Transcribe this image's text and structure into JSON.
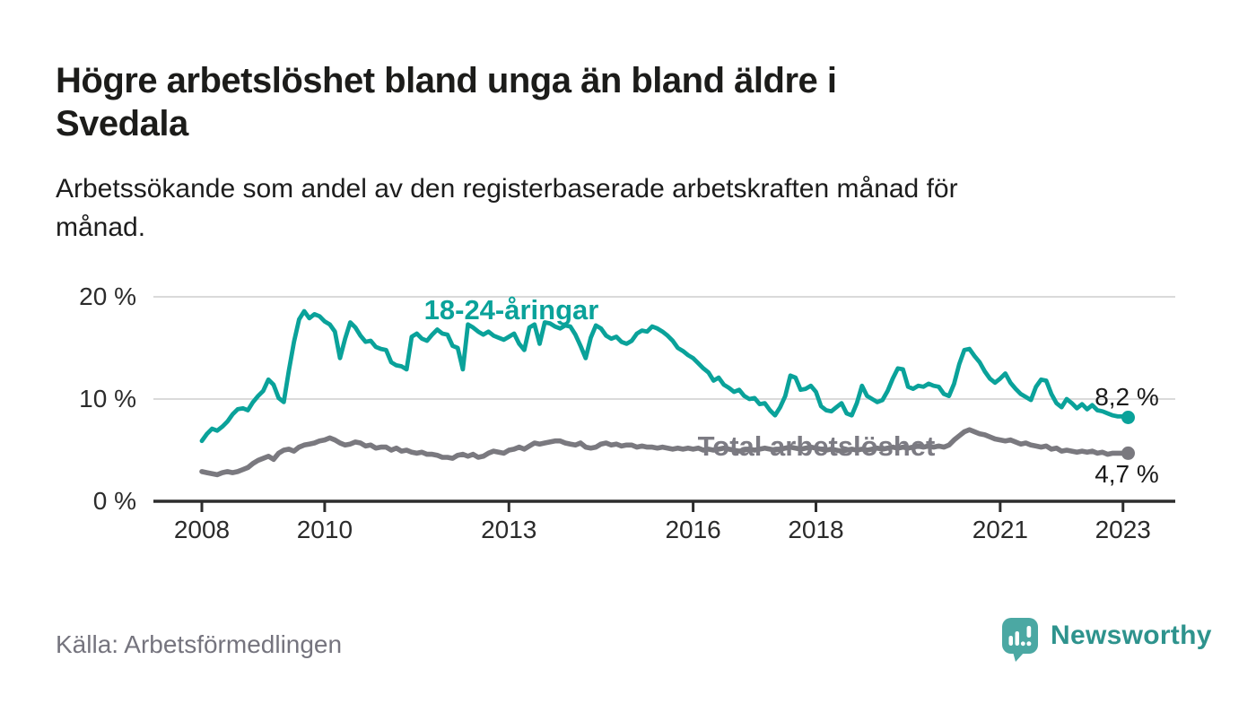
{
  "header": {
    "title_line1": "Högre arbetslöshet bland unga än bland äldre i",
    "title_line2": "Svedala",
    "subtitle_line1": "Arbetssökande som andel av den registerbaserade arbetskraften månad för",
    "subtitle_line2": "månad."
  },
  "footer": {
    "source_label": "Källa: Arbetsförmedlingen",
    "brand_name": "Newsworthy"
  },
  "colors": {
    "young_line": "#0aa29a",
    "total_line": "#7a797f",
    "gridline": "#dadada",
    "axis": "#2d2d2d",
    "brand_icon": "#4ba8a3",
    "brand_text": "#2e938d"
  },
  "chart_data": {
    "type": "line",
    "unit": "%",
    "frequency": "monthly",
    "start": "2008-01",
    "end": "2023-02",
    "ylim": [
      0,
      22
    ],
    "grid": "horizontal",
    "legend_position": "inline-labels",
    "x_ticks": [
      {
        "label": "2008",
        "year": 2008
      },
      {
        "label": "2010",
        "year": 2010
      },
      {
        "label": "2013",
        "year": 2013
      },
      {
        "label": "2016",
        "year": 2016
      },
      {
        "label": "2018",
        "year": 2018
      },
      {
        "label": "2021",
        "year": 2021
      },
      {
        "label": "2023",
        "year": 2023
      }
    ],
    "y_ticks": [
      {
        "label": "0 %",
        "value": 0
      },
      {
        "label": "10 %",
        "value": 10
      },
      {
        "label": "20 %",
        "value": 20
      }
    ],
    "series": [
      {
        "name": "18-24-åringar",
        "color": "#0aa29a",
        "end_label": "8,2 %",
        "last_value": 8.2,
        "values": [
          5.9,
          6.6,
          7.1,
          6.9,
          7.3,
          7.8,
          8.5,
          9.0,
          9.1,
          8.9,
          9.7,
          10.3,
          10.8,
          11.9,
          11.4,
          10.1,
          9.7,
          12.8,
          15.6,
          17.8,
          18.6,
          17.9,
          18.3,
          18.1,
          17.6,
          17.3,
          16.6,
          14.0,
          15.9,
          17.5,
          17.0,
          16.2,
          15.6,
          15.7,
          15.1,
          14.9,
          14.8,
          13.6,
          13.3,
          13.2,
          12.9,
          16.1,
          16.4,
          15.9,
          15.7,
          16.3,
          16.8,
          16.4,
          16.3,
          15.2,
          15.0,
          12.9,
          17.3,
          17.0,
          16.6,
          16.3,
          16.6,
          16.2,
          16.0,
          15.8,
          16.1,
          16.4,
          15.4,
          14.8,
          17.0,
          17.3,
          15.4,
          17.5,
          17.4,
          17.1,
          16.9,
          17.2,
          17.1,
          16.3,
          15.2,
          14.0,
          16.0,
          17.2,
          16.9,
          16.2,
          15.9,
          16.1,
          15.6,
          15.4,
          15.7,
          16.4,
          16.7,
          16.6,
          17.1,
          16.9,
          16.6,
          16.2,
          15.7,
          15.0,
          14.7,
          14.3,
          14.0,
          13.5,
          13.0,
          12.6,
          11.8,
          12.1,
          11.4,
          11.1,
          10.7,
          10.9,
          10.3,
          10.0,
          10.1,
          9.5,
          9.6,
          8.9,
          8.4,
          9.2,
          10.3,
          12.3,
          12.1,
          10.9,
          11.0,
          11.3,
          10.7,
          9.3,
          8.9,
          8.8,
          9.2,
          9.6,
          8.6,
          8.4,
          9.6,
          11.3,
          10.3,
          10.0,
          9.7,
          9.9,
          10.8,
          12.0,
          13.0,
          12.9,
          11.2,
          11.0,
          11.3,
          11.2,
          11.5,
          11.3,
          11.2,
          10.5,
          10.3,
          11.5,
          13.4,
          14.8,
          14.9,
          14.2,
          13.6,
          12.7,
          12.0,
          11.6,
          12.0,
          12.5,
          11.6,
          11.0,
          10.5,
          10.2,
          9.9,
          11.2,
          11.9,
          11.8,
          10.5,
          9.6,
          9.2,
          10.0,
          9.6,
          9.1,
          9.5,
          9.0,
          9.4,
          8.9,
          8.8,
          8.6,
          8.4,
          8.3,
          8.3,
          8.2
        ]
      },
      {
        "name": "Total arbetslöshet",
        "color": "#7a797f",
        "end_label": "4,7 %",
        "last_value": 4.7,
        "values": [
          2.9,
          2.8,
          2.7,
          2.6,
          2.8,
          2.9,
          2.8,
          2.9,
          3.1,
          3.3,
          3.7,
          4.0,
          4.2,
          4.4,
          4.1,
          4.7,
          5.0,
          5.1,
          4.9,
          5.3,
          5.5,
          5.6,
          5.7,
          5.9,
          6.0,
          6.2,
          6.0,
          5.7,
          5.5,
          5.6,
          5.8,
          5.7,
          5.4,
          5.5,
          5.2,
          5.3,
          5.3,
          5.0,
          5.2,
          4.9,
          5.0,
          4.8,
          4.7,
          4.8,
          4.6,
          4.6,
          4.5,
          4.3,
          4.3,
          4.2,
          4.5,
          4.6,
          4.4,
          4.6,
          4.3,
          4.4,
          4.7,
          4.9,
          4.8,
          4.7,
          5.0,
          5.1,
          5.3,
          5.1,
          5.4,
          5.7,
          5.6,
          5.7,
          5.8,
          5.9,
          5.9,
          5.7,
          5.6,
          5.5,
          5.7,
          5.3,
          5.2,
          5.3,
          5.6,
          5.7,
          5.5,
          5.6,
          5.4,
          5.5,
          5.5,
          5.3,
          5.4,
          5.3,
          5.3,
          5.2,
          5.3,
          5.2,
          5.1,
          5.2,
          5.1,
          5.2,
          5.1,
          5.2,
          5.0,
          5.1,
          5.0,
          5.1,
          5.2,
          5.1,
          5.0,
          4.9,
          5.0,
          5.1,
          5.0,
          5.1,
          5.2,
          5.1,
          5.0,
          5.1,
          5.2,
          5.3,
          5.2,
          5.1,
          5.2,
          5.3,
          5.2,
          5.1,
          5.0,
          5.1,
          5.0,
          4.9,
          5.0,
          5.1,
          5.0,
          5.1,
          5.0,
          5.1,
          5.2,
          5.1,
          5.2,
          5.3,
          5.2,
          5.3,
          5.2,
          5.3,
          5.4,
          5.3,
          5.4,
          5.3,
          5.4,
          5.3,
          5.5,
          6.0,
          6.4,
          6.8,
          7.0,
          6.8,
          6.6,
          6.5,
          6.3,
          6.1,
          6.0,
          5.9,
          6.0,
          5.8,
          5.6,
          5.7,
          5.5,
          5.4,
          5.3,
          5.4,
          5.1,
          5.2,
          4.9,
          5.0,
          4.9,
          4.8,
          4.9,
          4.8,
          4.9,
          4.7,
          4.8,
          4.6,
          4.7,
          4.7,
          4.7,
          4.7
        ]
      }
    ]
  }
}
